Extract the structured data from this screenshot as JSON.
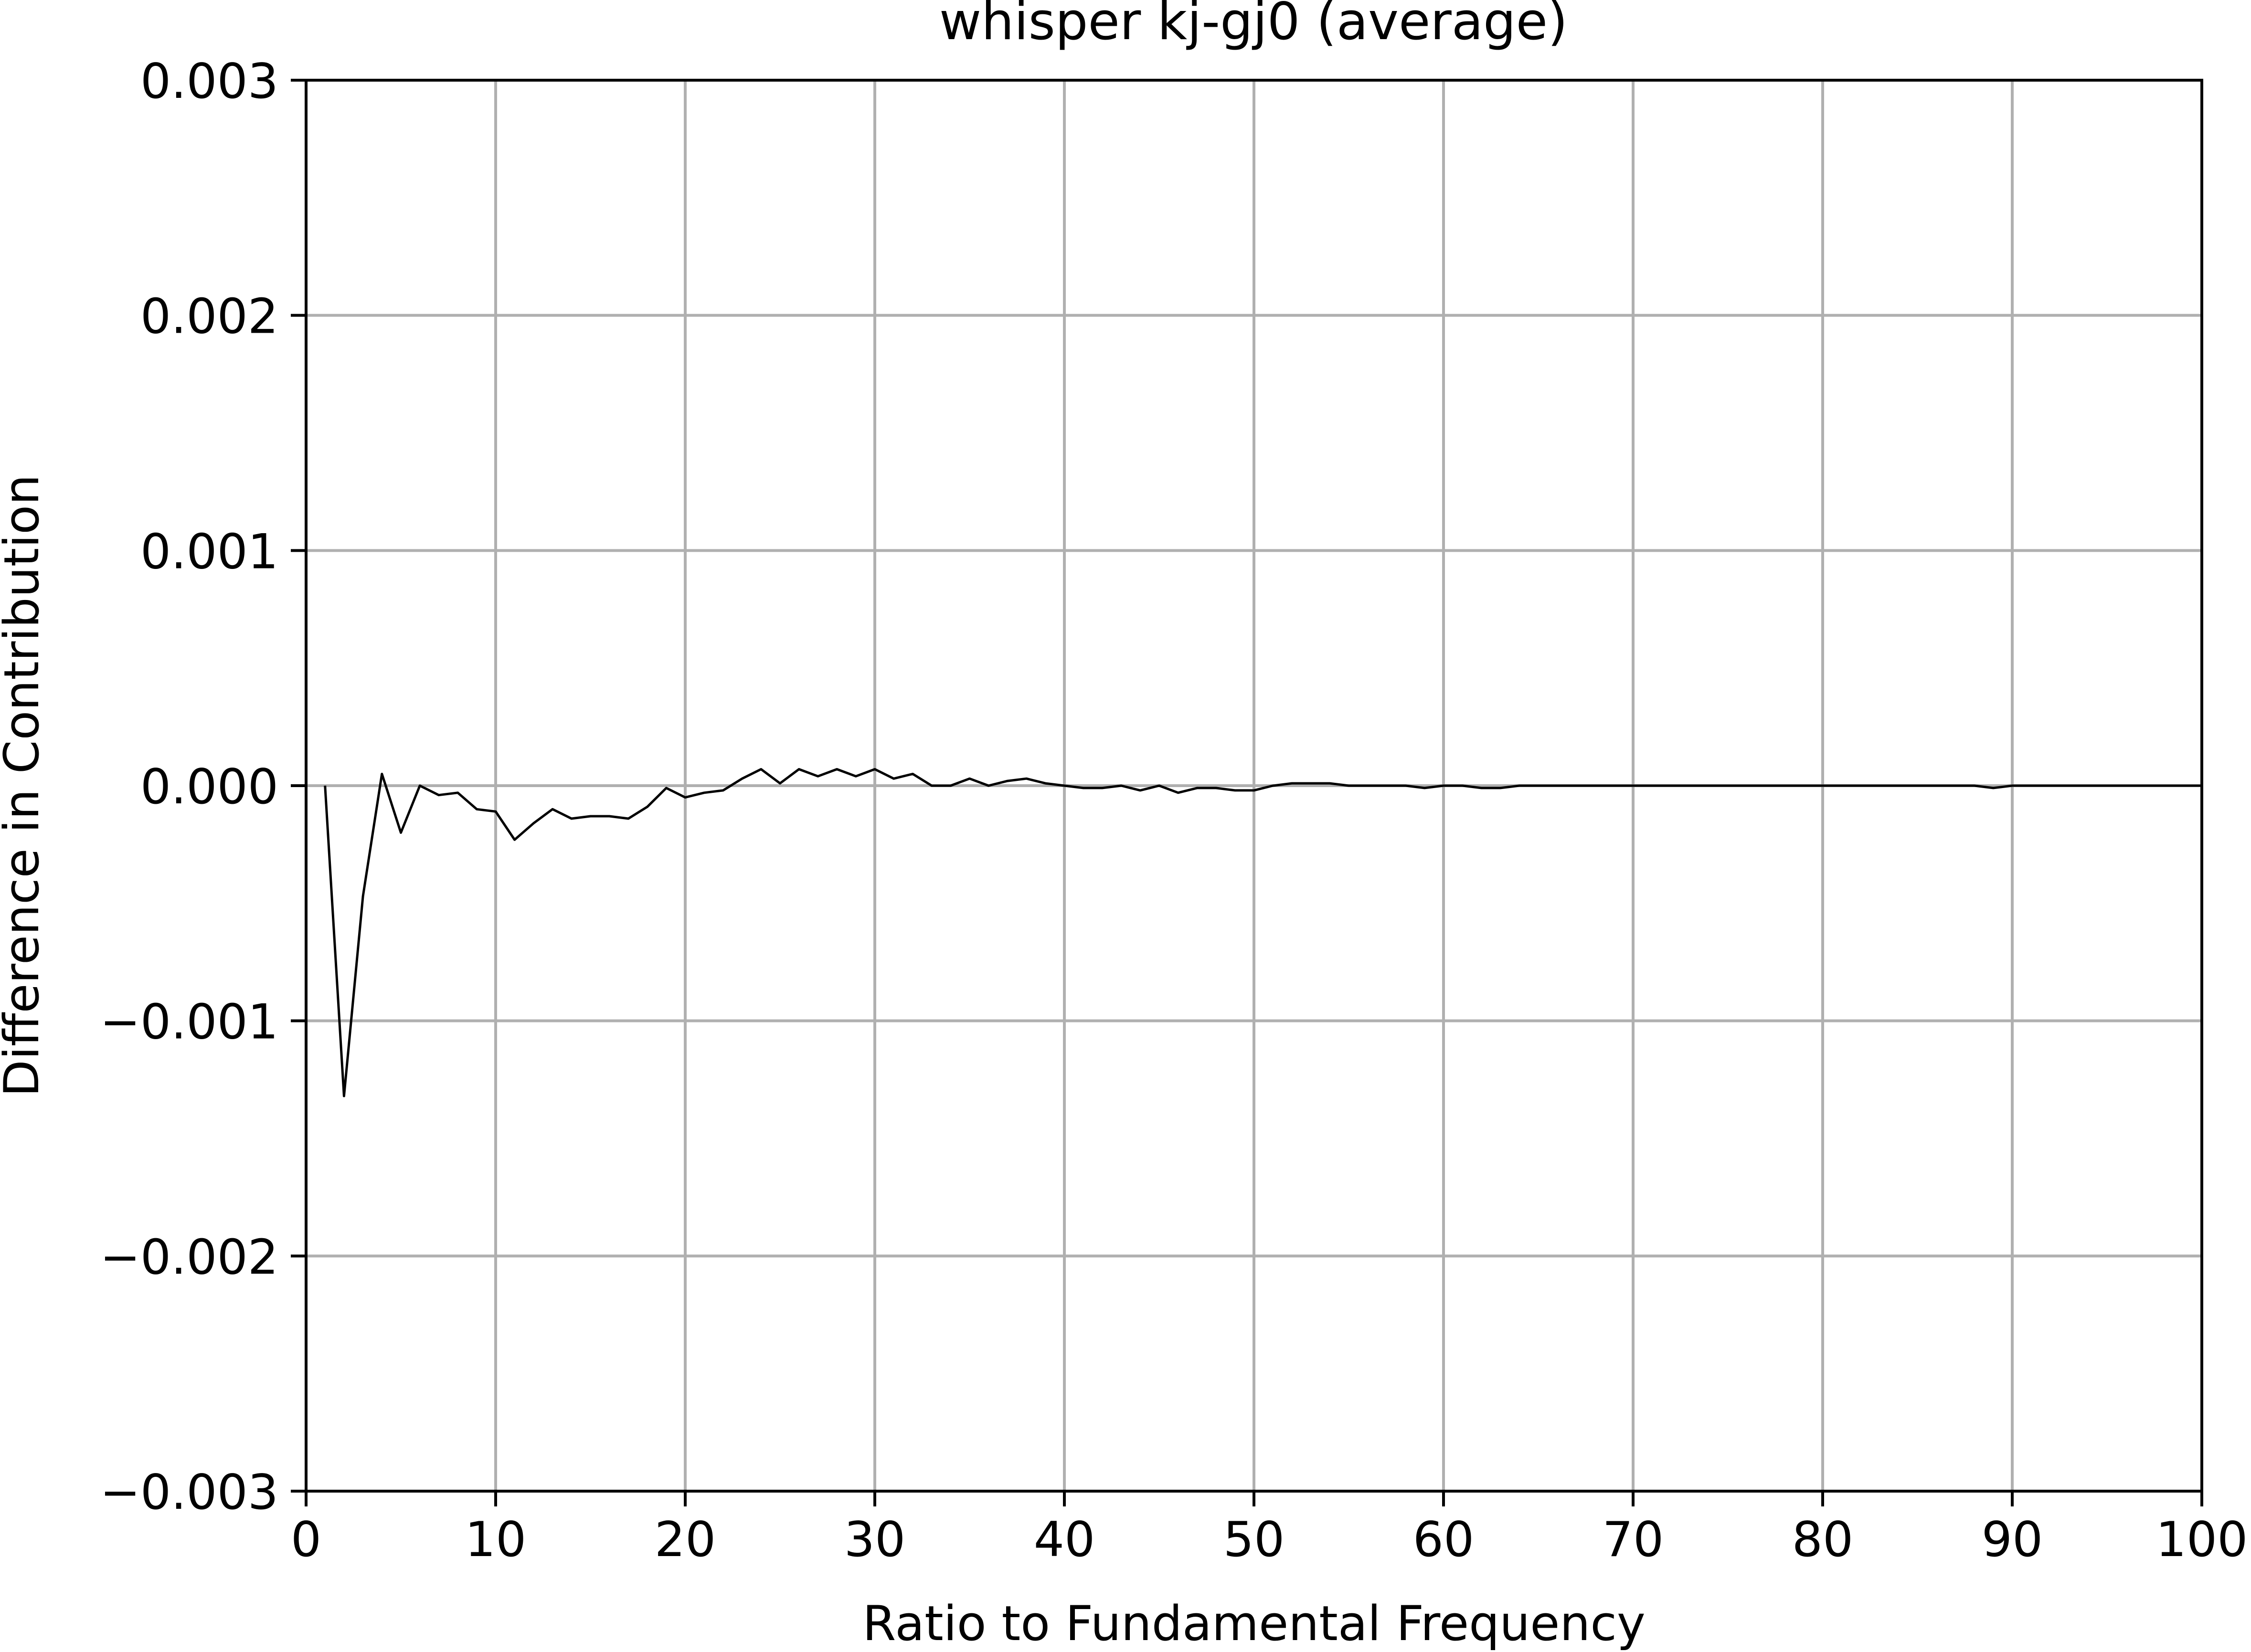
{
  "chart_data": {
    "type": "line",
    "title": "whisper kj-gj0 (average)",
    "xlabel": "Ratio to Fundamental Frequency",
    "ylabel": "Difference in Contribution",
    "xlim": [
      0,
      100
    ],
    "ylim": [
      -0.003,
      0.003
    ],
    "x_ticks": [
      0,
      10,
      20,
      30,
      40,
      50,
      60,
      70,
      80,
      90,
      100
    ],
    "x_tick_labels": [
      "0",
      "10",
      "20",
      "30",
      "40",
      "50",
      "60",
      "70",
      "80",
      "90",
      "100"
    ],
    "y_ticks": [
      -0.003,
      -0.002,
      -0.001,
      0.0,
      0.001,
      0.002,
      0.003
    ],
    "y_tick_labels": [
      "−0.003",
      "−0.002",
      "−0.001",
      "0.000",
      "0.001",
      "0.002",
      "0.003"
    ],
    "grid": true,
    "colors": {
      "line": "#000000",
      "grid": "#b0b0b0",
      "axes": "#000000"
    },
    "series": [
      {
        "x": [
          1,
          2,
          3,
          4,
          5,
          6,
          7,
          8,
          9,
          10,
          11,
          12,
          13,
          14,
          15,
          16,
          17,
          18,
          19,
          20,
          21,
          22,
          23,
          24,
          25,
          26,
          27,
          28,
          29,
          30,
          31,
          32,
          33,
          34,
          35,
          36,
          37,
          38,
          39,
          40,
          41,
          42,
          43,
          44,
          45,
          46,
          47,
          48,
          49,
          50,
          51,
          52,
          53,
          54,
          55,
          56,
          57,
          58,
          59,
          60,
          61,
          62,
          63,
          64,
          65,
          66,
          67,
          68,
          69,
          70,
          71,
          72,
          73,
          74,
          75,
          76,
          77,
          78,
          79,
          80,
          81,
          82,
          83,
          84,
          85,
          86,
          87,
          88,
          89,
          90,
          91,
          92,
          93,
          94,
          95,
          96,
          97,
          98,
          99,
          100
        ],
        "values": [
          0.0,
          -0.00132,
          -0.00047,
          5e-05,
          -0.0002,
          0.0,
          -4e-05,
          -3e-05,
          -0.0001,
          -0.00011,
          -0.00023,
          -0.00016,
          -0.0001,
          -0.00014,
          -0.00013,
          -0.00013,
          -0.00014,
          -9e-05,
          -1e-05,
          -5e-05,
          -3e-05,
          -2e-05,
          3e-05,
          7e-05,
          1e-05,
          7e-05,
          4e-05,
          7e-05,
          4e-05,
          7e-05,
          3e-05,
          5e-05,
          0.0,
          0.0,
          3e-05,
          0.0,
          2e-05,
          3e-05,
          1e-05,
          0.0,
          -1e-05,
          -1e-05,
          0.0,
          -2e-05,
          0.0,
          -3e-05,
          -1e-05,
          -1e-05,
          -2e-05,
          -2e-05,
          0.0,
          1e-05,
          1e-05,
          1e-05,
          0.0,
          0.0,
          0.0,
          0.0,
          -1e-05,
          0.0,
          0.0,
          -1e-05,
          -1e-05,
          0.0,
          0.0,
          0.0,
          0.0,
          0.0,
          0.0,
          0.0,
          0.0,
          0.0,
          0.0,
          0.0,
          0.0,
          0.0,
          0.0,
          0.0,
          0.0,
          0.0,
          0.0,
          0.0,
          0.0,
          0.0,
          0.0,
          0.0,
          0.0,
          0.0,
          -1e-05,
          0.0,
          0.0,
          0.0,
          0.0,
          0.0,
          0.0,
          0.0,
          0.0,
          0.0,
          0.0,
          0.0
        ]
      }
    ]
  }
}
